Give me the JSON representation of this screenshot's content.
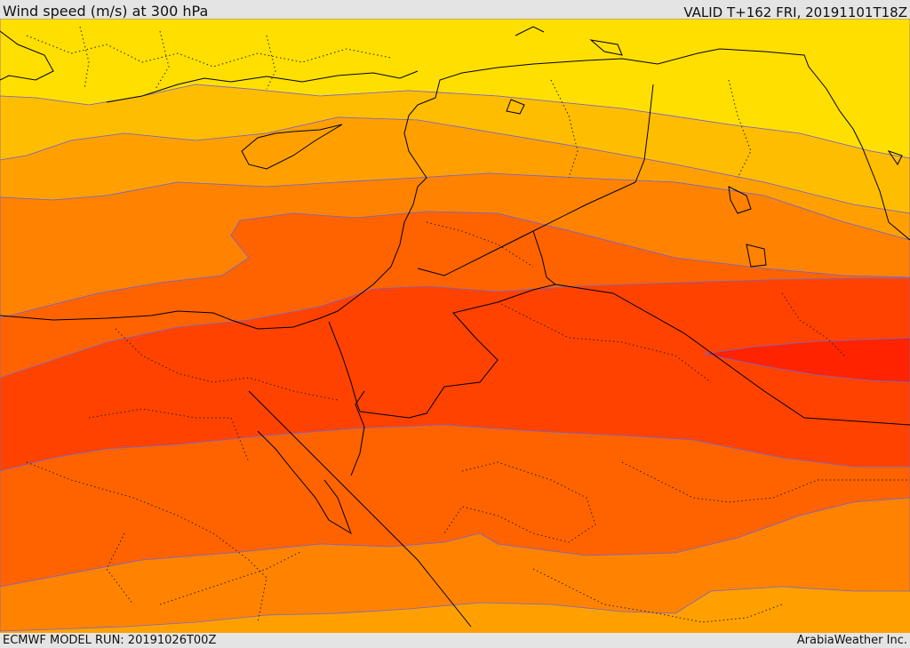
{
  "header": {
    "title": "Wind speed (m/s) at 300 hPa",
    "valid": "VALID T+162 FRI, 20191101T18Z"
  },
  "footer": {
    "model_run": "ECMWF MODEL RUN: 20191026T00Z",
    "brand": "ArabiaWeather Inc."
  },
  "colors": {
    "band_yellow": "#ffdf00",
    "band_gold": "#ffbd00",
    "band_amber": "#ffa000",
    "band_orange": "#ff8300",
    "band_dark_orange": "#ff6300",
    "band_red_orange": "#ff4200",
    "band_red": "#ff2300",
    "contour": "#7a64c8",
    "coast_border": "#000000"
  }
}
